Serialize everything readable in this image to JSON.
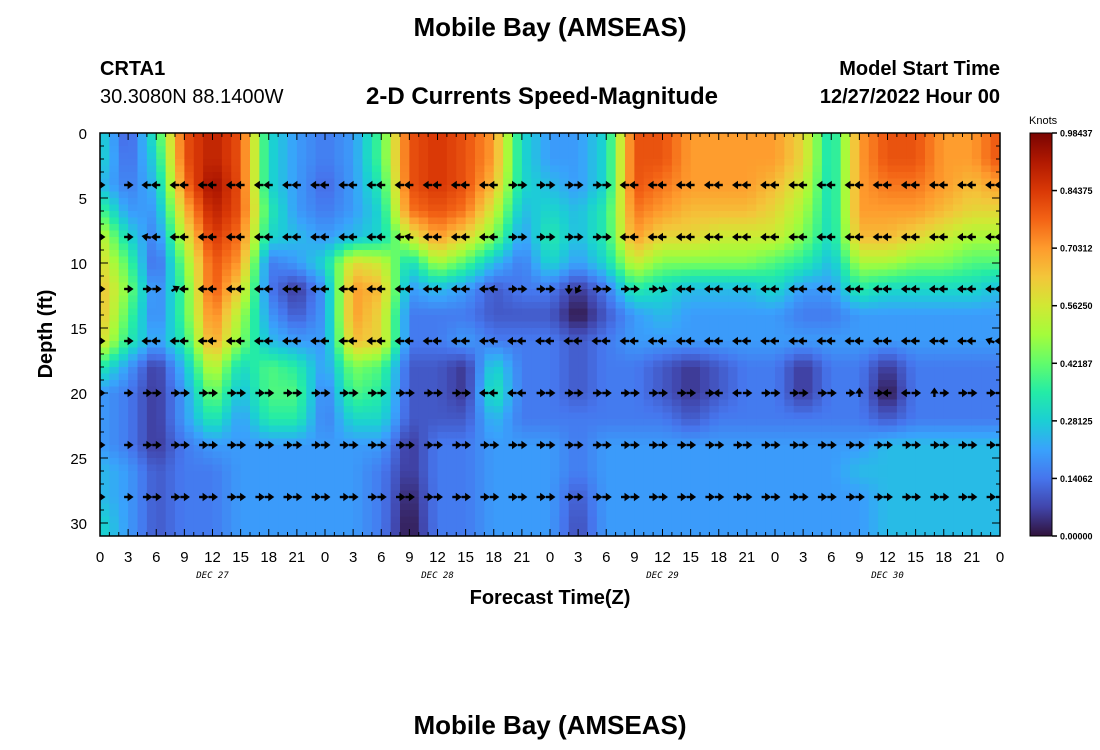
{
  "title": "Mobile Bay (AMSEAS)",
  "station": {
    "id": "CRTA1",
    "coords": "30.3080N  88.1400W"
  },
  "model_start": {
    "label": "Model Start Time",
    "value": "12/27/2022 Hour 00"
  },
  "second_title": "Mobile Bay (AMSEAS)",
  "chart_data": {
    "type": "heatmap",
    "title": "2-D Currents Speed-Magnitude",
    "xlabel": "Forecast Time(Z)",
    "ylabel": "Depth (ft)",
    "x_tick_labels": [
      "0",
      "3",
      "6",
      "9",
      "12",
      "15",
      "18",
      "21",
      "0",
      "3",
      "6",
      "9",
      "12",
      "15",
      "18",
      "21",
      "0",
      "3",
      "6",
      "9",
      "12",
      "15",
      "18",
      "21",
      "0",
      "3",
      "6",
      "9",
      "12",
      "15",
      "18",
      "21",
      "0"
    ],
    "x_range_hours": [
      0,
      96
    ],
    "day_labels": [
      "DEC 27",
      "DEC 28",
      "DEC 29",
      "DEC 30"
    ],
    "y_ticks": [
      0,
      5,
      10,
      15,
      20,
      25,
      30
    ],
    "y_range_ft": [
      0,
      31
    ],
    "y_inverted": true,
    "colorbar": {
      "unit": "Knots",
      "ticks": [
        "0.98437",
        "0.84375",
        "0.70312",
        "0.56250",
        "0.42187",
        "0.28125",
        "0.14062",
        "0.00000"
      ],
      "range": [
        0,
        0.98437
      ],
      "colormap": [
        "#30123b",
        "#4145ab",
        "#4675ed",
        "#39a2fc",
        "#1bcfd4",
        "#24eca6",
        "#61fc6c",
        "#a4fc3b",
        "#d1e834",
        "#f3c63a",
        "#fe9b2d",
        "#f36315",
        "#d93806",
        "#b11901",
        "#7a0402"
      ]
    },
    "depth_levels_ft": [
      0,
      2,
      4,
      6,
      8,
      10,
      12,
      14,
      16,
      18,
      20,
      22,
      24,
      26,
      28,
      30,
      31
    ],
    "time_hours": [
      0,
      3,
      6,
      9,
      12,
      15,
      18,
      21,
      24,
      27,
      30,
      33,
      36,
      39,
      42,
      45,
      48,
      51,
      54,
      57,
      60,
      63,
      66,
      69,
      72,
      75,
      78,
      81,
      84,
      87,
      90,
      93,
      96
    ],
    "speed_knots": [
      [
        0.3,
        0.1,
        0.35,
        0.8,
        0.9,
        0.8,
        0.3,
        0.2,
        0.15,
        0.2,
        0.4,
        0.8,
        0.85,
        0.8,
        0.7,
        0.3,
        0.2,
        0.2,
        0.3,
        0.8,
        0.8,
        0.7,
        0.7,
        0.7,
        0.7,
        0.6,
        0.3,
        0.7,
        0.8,
        0.8,
        0.7,
        0.7,
        0.8
      ],
      [
        0.3,
        0.12,
        0.3,
        0.8,
        0.9,
        0.8,
        0.3,
        0.2,
        0.15,
        0.2,
        0.4,
        0.8,
        0.85,
        0.8,
        0.7,
        0.3,
        0.2,
        0.2,
        0.3,
        0.8,
        0.8,
        0.7,
        0.7,
        0.7,
        0.7,
        0.6,
        0.3,
        0.7,
        0.8,
        0.8,
        0.7,
        0.7,
        0.8
      ],
      [
        0.25,
        0.15,
        0.25,
        0.75,
        0.95,
        0.8,
        0.3,
        0.2,
        0.12,
        0.2,
        0.35,
        0.8,
        0.85,
        0.8,
        0.65,
        0.3,
        0.25,
        0.2,
        0.3,
        0.8,
        0.75,
        0.7,
        0.7,
        0.7,
        0.65,
        0.55,
        0.3,
        0.7,
        0.75,
        0.75,
        0.7,
        0.65,
        0.7
      ],
      [
        0.4,
        0.2,
        0.2,
        0.65,
        0.9,
        0.8,
        0.35,
        0.2,
        0.15,
        0.2,
        0.3,
        0.75,
        0.8,
        0.75,
        0.55,
        0.25,
        0.3,
        0.25,
        0.35,
        0.75,
        0.7,
        0.65,
        0.65,
        0.65,
        0.6,
        0.5,
        0.3,
        0.7,
        0.7,
        0.7,
        0.65,
        0.6,
        0.6
      ],
      [
        0.55,
        0.3,
        0.15,
        0.55,
        0.85,
        0.75,
        0.3,
        0.25,
        0.2,
        0.25,
        0.3,
        0.55,
        0.7,
        0.6,
        0.45,
        0.2,
        0.35,
        0.25,
        0.35,
        0.7,
        0.6,
        0.6,
        0.55,
        0.55,
        0.55,
        0.45,
        0.3,
        0.65,
        0.65,
        0.6,
        0.55,
        0.5,
        0.5
      ],
      [
        0.6,
        0.4,
        0.1,
        0.45,
        0.8,
        0.7,
        0.15,
        0.2,
        0.3,
        0.6,
        0.55,
        0.3,
        0.5,
        0.4,
        0.25,
        0.15,
        0.3,
        0.2,
        0.3,
        0.55,
        0.45,
        0.45,
        0.45,
        0.45,
        0.4,
        0.35,
        0.25,
        0.5,
        0.5,
        0.45,
        0.45,
        0.4,
        0.4
      ],
      [
        0.65,
        0.45,
        0.15,
        0.4,
        0.8,
        0.6,
        0.15,
        0.05,
        0.2,
        0.7,
        0.65,
        0.2,
        0.25,
        0.2,
        0.1,
        0.15,
        0.15,
        0.05,
        0.15,
        0.35,
        0.3,
        0.25,
        0.25,
        0.25,
        0.3,
        0.2,
        0.2,
        0.35,
        0.3,
        0.3,
        0.3,
        0.3,
        0.25
      ],
      [
        0.65,
        0.4,
        0.15,
        0.4,
        0.75,
        0.5,
        0.2,
        0.1,
        0.2,
        0.7,
        0.6,
        0.15,
        0.15,
        0.15,
        0.1,
        0.1,
        0.1,
        0.0,
        0.1,
        0.2,
        0.25,
        0.2,
        0.2,
        0.2,
        0.2,
        0.15,
        0.15,
        0.2,
        0.2,
        0.2,
        0.2,
        0.2,
        0.2
      ],
      [
        0.6,
        0.35,
        0.2,
        0.35,
        0.7,
        0.45,
        0.25,
        0.2,
        0.2,
        0.65,
        0.6,
        0.15,
        0.15,
        0.2,
        0.15,
        0.15,
        0.15,
        0.1,
        0.15,
        0.2,
        0.2,
        0.2,
        0.2,
        0.2,
        0.2,
        0.2,
        0.2,
        0.2,
        0.2,
        0.2,
        0.2,
        0.2,
        0.2
      ],
      [
        0.35,
        0.2,
        0.05,
        0.25,
        0.55,
        0.3,
        0.4,
        0.35,
        0.2,
        0.45,
        0.4,
        0.1,
        0.1,
        0.05,
        0.3,
        0.15,
        0.15,
        0.1,
        0.15,
        0.15,
        0.1,
        0.05,
        0.1,
        0.15,
        0.15,
        0.05,
        0.15,
        0.15,
        0.05,
        0.15,
        0.15,
        0.15,
        0.15
      ],
      [
        0.2,
        0.15,
        0.05,
        0.2,
        0.45,
        0.25,
        0.4,
        0.4,
        0.15,
        0.4,
        0.35,
        0.1,
        0.1,
        0.05,
        0.35,
        0.15,
        0.15,
        0.1,
        0.15,
        0.15,
        0.1,
        0.05,
        0.1,
        0.15,
        0.15,
        0.05,
        0.15,
        0.15,
        0.0,
        0.15,
        0.15,
        0.15,
        0.15
      ],
      [
        0.2,
        0.15,
        0.05,
        0.2,
        0.35,
        0.2,
        0.35,
        0.35,
        0.15,
        0.3,
        0.3,
        0.1,
        0.1,
        0.1,
        0.25,
        0.15,
        0.15,
        0.15,
        0.15,
        0.15,
        0.15,
        0.1,
        0.15,
        0.15,
        0.15,
        0.15,
        0.15,
        0.15,
        0.1,
        0.15,
        0.15,
        0.15,
        0.15
      ],
      [
        0.2,
        0.15,
        0.05,
        0.15,
        0.2,
        0.2,
        0.2,
        0.2,
        0.2,
        0.2,
        0.2,
        0.05,
        0.15,
        0.15,
        0.2,
        0.2,
        0.2,
        0.15,
        0.2,
        0.2,
        0.2,
        0.2,
        0.2,
        0.2,
        0.2,
        0.2,
        0.2,
        0.2,
        0.25,
        0.25,
        0.25,
        0.25,
        0.25
      ],
      [
        0.25,
        0.2,
        0.1,
        0.15,
        0.15,
        0.2,
        0.2,
        0.2,
        0.2,
        0.2,
        0.15,
        0.05,
        0.15,
        0.15,
        0.2,
        0.2,
        0.2,
        0.15,
        0.2,
        0.2,
        0.2,
        0.2,
        0.2,
        0.2,
        0.2,
        0.2,
        0.2,
        0.25,
        0.25,
        0.25,
        0.25,
        0.25,
        0.25
      ],
      [
        0.25,
        0.2,
        0.1,
        0.15,
        0.15,
        0.2,
        0.2,
        0.2,
        0.2,
        0.2,
        0.15,
        0.02,
        0.15,
        0.15,
        0.2,
        0.2,
        0.2,
        0.1,
        0.2,
        0.2,
        0.2,
        0.2,
        0.2,
        0.2,
        0.2,
        0.2,
        0.2,
        0.2,
        0.25,
        0.25,
        0.25,
        0.25,
        0.25
      ],
      [
        0.3,
        0.2,
        0.1,
        0.15,
        0.15,
        0.2,
        0.2,
        0.2,
        0.2,
        0.2,
        0.15,
        0.0,
        0.15,
        0.15,
        0.2,
        0.2,
        0.2,
        0.08,
        0.2,
        0.2,
        0.2,
        0.2,
        0.2,
        0.2,
        0.2,
        0.2,
        0.2,
        0.2,
        0.25,
        0.25,
        0.25,
        0.25,
        0.25
      ],
      [
        0.3,
        0.2,
        0.1,
        0.15,
        0.15,
        0.2,
        0.2,
        0.2,
        0.2,
        0.2,
        0.15,
        0.0,
        0.15,
        0.15,
        0.2,
        0.2,
        0.2,
        0.08,
        0.2,
        0.2,
        0.2,
        0.2,
        0.2,
        0.2,
        0.2,
        0.2,
        0.2,
        0.2,
        0.25,
        0.25,
        0.25,
        0.25,
        0.25
      ]
    ],
    "vector_depths_ft": [
      4,
      8,
      12,
      16,
      20,
      24,
      28
    ],
    "vector_times_hours": [
      0,
      3,
      5,
      6,
      8,
      9,
      11,
      12,
      14,
      15,
      17,
      18,
      20,
      21,
      23,
      24,
      26,
      27,
      29,
      30,
      32,
      33,
      35,
      36,
      38,
      39,
      41,
      42,
      44,
      45,
      47,
      48,
      50,
      51,
      53,
      54,
      56,
      57,
      59,
      60,
      62,
      63,
      65,
      66,
      68,
      69,
      71,
      72,
      74,
      75,
      77,
      78,
      80,
      81,
      83,
      84,
      86,
      87,
      89,
      90,
      92,
      93,
      95,
      96
    ],
    "vector_directions_deg": {
      "note_units": "degrees, math convention (0 = east/right, 90 = up)",
      "depth_4": [
        0,
        0,
        180,
        180,
        180,
        180,
        180,
        180,
        180,
        180,
        180,
        180,
        180,
        180,
        180,
        180,
        180,
        180,
        180,
        180,
        180,
        180,
        180,
        180,
        180,
        180,
        180,
        180,
        0,
        0,
        0,
        0,
        0,
        0,
        0,
        0,
        180,
        180,
        180,
        180,
        180,
        180,
        180,
        180,
        180,
        180,
        180,
        180,
        180,
        180,
        180,
        180,
        180,
        180,
        180,
        180,
        180,
        180,
        180,
        180,
        180,
        180,
        180,
        180
      ],
      "depth_8": [
        0,
        0,
        170,
        180,
        180,
        180,
        180,
        180,
        180,
        180,
        180,
        180,
        180,
        180,
        180,
        180,
        180,
        180,
        180,
        180,
        180,
        170,
        180,
        180,
        180,
        180,
        180,
        180,
        0,
        0,
        0,
        0,
        0,
        0,
        0,
        0,
        180,
        180,
        180,
        180,
        180,
        180,
        180,
        180,
        180,
        180,
        180,
        180,
        180,
        180,
        180,
        180,
        180,
        180,
        180,
        180,
        180,
        180,
        180,
        180,
        180,
        180,
        180,
        180
      ],
      "depth_12": [
        0,
        0,
        0,
        0,
        30,
        180,
        180,
        180,
        180,
        180,
        180,
        180,
        180,
        180,
        180,
        180,
        180,
        180,
        180,
        180,
        180,
        180,
        180,
        180,
        180,
        180,
        180,
        170,
        0,
        0,
        0,
        0,
        270,
        240,
        0,
        0,
        0,
        0,
        0,
        340,
        180,
        180,
        180,
        180,
        180,
        180,
        180,
        180,
        180,
        180,
        180,
        180,
        180,
        180,
        180,
        180,
        180,
        180,
        180,
        180,
        180,
        180,
        180,
        180
      ],
      "depth_16": [
        0,
        0,
        180,
        180,
        180,
        180,
        180,
        180,
        180,
        180,
        180,
        180,
        180,
        180,
        180,
        180,
        180,
        180,
        180,
        180,
        180,
        180,
        180,
        180,
        180,
        180,
        180,
        170,
        180,
        180,
        180,
        180,
        180,
        180,
        180,
        180,
        180,
        180,
        180,
        180,
        180,
        180,
        180,
        180,
        180,
        180,
        180,
        180,
        180,
        180,
        180,
        180,
        180,
        180,
        180,
        180,
        180,
        180,
        180,
        180,
        180,
        180,
        160,
        180
      ],
      "depth_20": [
        0,
        0,
        0,
        0,
        0,
        0,
        0,
        0,
        0,
        0,
        0,
        0,
        0,
        0,
        0,
        0,
        0,
        0,
        0,
        0,
        0,
        0,
        0,
        0,
        0,
        0,
        180,
        180,
        180,
        180,
        0,
        0,
        0,
        0,
        0,
        0,
        0,
        0,
        0,
        0,
        0,
        0,
        0,
        180,
        180,
        0,
        0,
        0,
        0,
        0,
        0,
        0,
        0,
        90,
        0,
        180,
        180,
        0,
        90,
        0,
        0,
        0,
        0,
        0
      ],
      "depth_24": [
        0,
        0,
        0,
        0,
        0,
        0,
        0,
        0,
        0,
        0,
        0,
        0,
        0,
        0,
        0,
        0,
        0,
        0,
        0,
        0,
        0,
        0,
        0,
        0,
        0,
        0,
        0,
        0,
        0,
        0,
        0,
        0,
        0,
        0,
        0,
        0,
        0,
        0,
        0,
        0,
        0,
        0,
        0,
        0,
        0,
        0,
        0,
        0,
        0,
        0,
        0,
        0,
        0,
        0,
        0,
        0,
        0,
        0,
        0,
        0,
        0,
        0,
        0,
        0
      ],
      "depth_28": [
        0,
        0,
        0,
        0,
        0,
        0,
        0,
        0,
        0,
        0,
        0,
        0,
        0,
        0,
        0,
        0,
        0,
        0,
        0,
        0,
        0,
        0,
        0,
        0,
        0,
        0,
        0,
        0,
        0,
        0,
        0,
        0,
        0,
        0,
        0,
        0,
        0,
        0,
        0,
        0,
        0,
        0,
        0,
        0,
        0,
        0,
        0,
        0,
        0,
        0,
        0,
        0,
        0,
        0,
        0,
        0,
        0,
        0,
        0,
        0,
        0,
        0,
        0,
        0
      ]
    }
  }
}
